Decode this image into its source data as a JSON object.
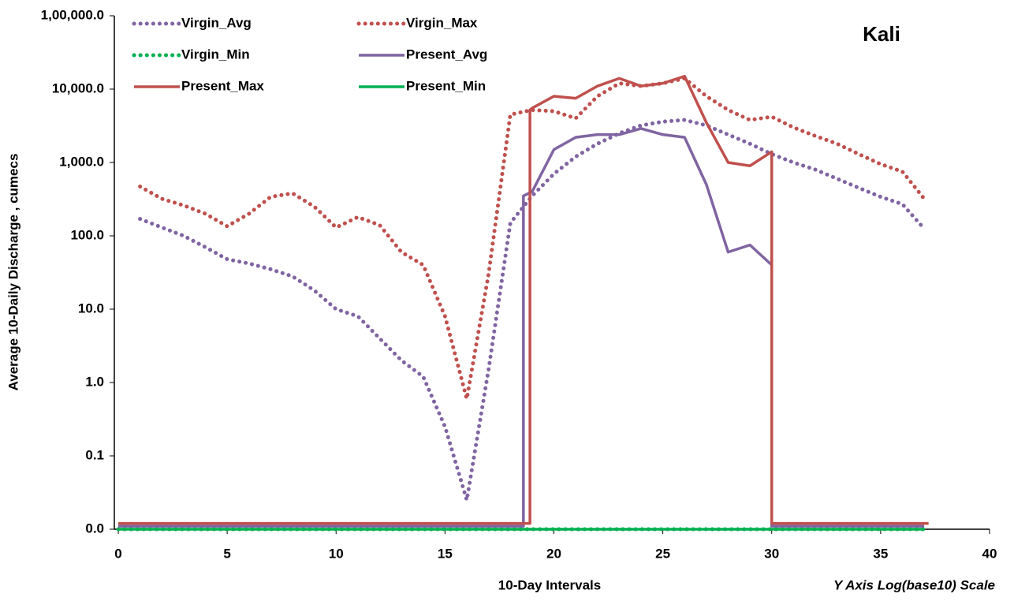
{
  "chart_data": {
    "type": "line",
    "title": "Kali",
    "x_label": "10-Day Intervals",
    "y_label": "Average 10-Daily Discharge , cumecs",
    "annotation": "Y  Axis  Log(base10)  Scale",
    "log_scale_y": true,
    "grid": false,
    "legend_position": "top-left",
    "xlim": [
      0,
      40
    ],
    "xticks": [
      0,
      5,
      10,
      15,
      20,
      25,
      30,
      35,
      40
    ],
    "ylim": [
      0.01,
      100000
    ],
    "yticks": [
      {
        "value": 0.01,
        "label": "0.0"
      },
      {
        "value": 0.1,
        "label": "0.1"
      },
      {
        "value": 1,
        "label": "1.0"
      },
      {
        "value": 10,
        "label": "10.0"
      },
      {
        "value": 100,
        "label": "100.0"
      },
      {
        "value": 1000,
        "label": "1,000.0"
      },
      {
        "value": 10000,
        "label": "10,000.0"
      },
      {
        "value": 100000,
        "label": "1,00,000.0"
      }
    ],
    "series": [
      {
        "name": "Virgin_Avg",
        "color": "#8064a2",
        "style": "dotted",
        "x": [
          1,
          2,
          3,
          4,
          5,
          6,
          7,
          8,
          9,
          10,
          11,
          12,
          13,
          14,
          15,
          16,
          17,
          18,
          19,
          20,
          21,
          22,
          23,
          24,
          25,
          26,
          27,
          28,
          29,
          30,
          31,
          32,
          33,
          34,
          35,
          36,
          37
        ],
        "values": [
          170,
          130,
          100,
          70,
          48,
          42,
          35,
          28,
          18,
          10,
          8,
          4,
          2,
          1.2,
          0.25,
          0.025,
          1.5,
          150,
          350,
          700,
          1200,
          1800,
          2500,
          3200,
          3600,
          3800,
          3200,
          2400,
          1800,
          1300,
          1000,
          800,
          600,
          450,
          340,
          270,
          125
        ]
      },
      {
        "name": "Virgin_Max",
        "color": "#c0504d",
        "style": "dotted",
        "x": [
          1,
          2,
          3,
          4,
          5,
          6,
          7,
          8,
          9,
          10,
          11,
          12,
          13,
          14,
          15,
          16,
          17,
          18,
          19,
          20,
          21,
          22,
          23,
          24,
          25,
          26,
          27,
          28,
          29,
          30,
          31,
          32,
          33,
          34,
          35,
          36,
          37
        ],
        "values": [
          470,
          320,
          260,
          200,
          135,
          200,
          340,
          380,
          250,
          130,
          180,
          140,
          60,
          40,
          8,
          0.6,
          30,
          4500,
          5200,
          5000,
          4000,
          8000,
          12000,
          11000,
          12000,
          14000,
          8000,
          5200,
          3800,
          4200,
          3000,
          2300,
          1800,
          1300,
          950,
          750,
          320
        ]
      },
      {
        "name": "Virgin_Min",
        "color": "#00b050",
        "style": "dotted",
        "x": [
          0,
          37
        ],
        "values": [
          0.01,
          0.01
        ]
      },
      {
        "name": "Present_Avg",
        "color": "#8064a2",
        "style": "solid",
        "x": [
          0,
          18.6,
          18.6,
          19,
          20,
          21,
          22,
          23,
          24,
          25,
          26,
          27,
          28,
          29,
          30,
          30,
          37
        ],
        "values": [
          0.011,
          0.011,
          350,
          400,
          1500,
          2200,
          2400,
          2400,
          2900,
          2400,
          2200,
          500,
          60,
          75,
          40,
          0.011,
          0.011
        ]
      },
      {
        "name": "Present_Max",
        "color": "#c0504d",
        "style": "solid",
        "x": [
          0,
          18.9,
          18.9,
          19,
          20,
          21,
          22,
          23,
          24,
          25,
          26,
          27,
          28,
          29,
          30,
          30,
          37.2
        ],
        "values": [
          0.012,
          0.012,
          5200,
          5500,
          8000,
          7500,
          11000,
          14000,
          11000,
          12000,
          15000,
          3500,
          1000,
          900,
          1400,
          0.012,
          0.012
        ]
      },
      {
        "name": "Present_Min",
        "color": "#00b050",
        "style": "solid",
        "x": [
          0,
          37
        ],
        "values": [
          0.01,
          0.01
        ]
      }
    ]
  }
}
